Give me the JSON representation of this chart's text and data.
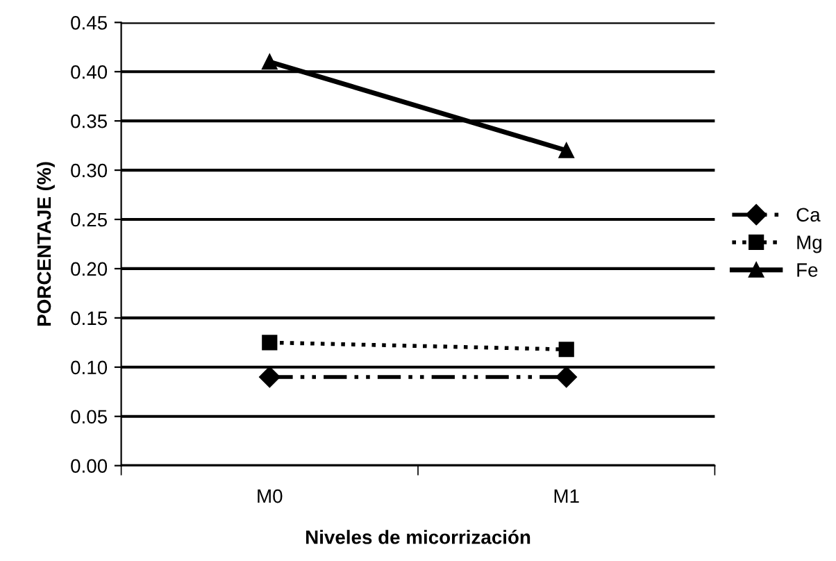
{
  "chart_data": {
    "type": "line",
    "xlabel": "Niveles de micorrización",
    "ylabel": "PORCENTAJE (%)",
    "categories": [
      "M0",
      "M1"
    ],
    "series": [
      {
        "name": "Ca",
        "color": "#000000",
        "values": [
          0.09,
          0.09
        ],
        "marker": "diamond",
        "line_style": "dashed"
      },
      {
        "name": "Mg",
        "color": "#000000",
        "values": [
          0.125,
          0.118
        ],
        "marker": "square",
        "line_style": "dotted"
      },
      {
        "name": "Fe",
        "color": "#000000",
        "values": [
          0.41,
          0.32
        ],
        "marker": "triangle",
        "line_style": "solid"
      }
    ],
    "ylim": [
      0,
      0.45
    ],
    "yticks": [
      {
        "value": 0,
        "label": "0.00"
      },
      {
        "value": 0.05,
        "label": "0.05"
      },
      {
        "value": 0.1,
        "label": "0.10"
      },
      {
        "value": 0.15,
        "label": "0.15"
      },
      {
        "value": 0.2,
        "label": "0.20"
      },
      {
        "value": 0.25,
        "label": "0.25"
      },
      {
        "value": 0.3,
        "label": "0.30"
      },
      {
        "value": 0.35,
        "label": "0.35"
      },
      {
        "value": 0.4,
        "label": "0.40"
      },
      {
        "value": 0.45,
        "label": "0.45"
      }
    ],
    "grid": "y",
    "legend": "right"
  }
}
